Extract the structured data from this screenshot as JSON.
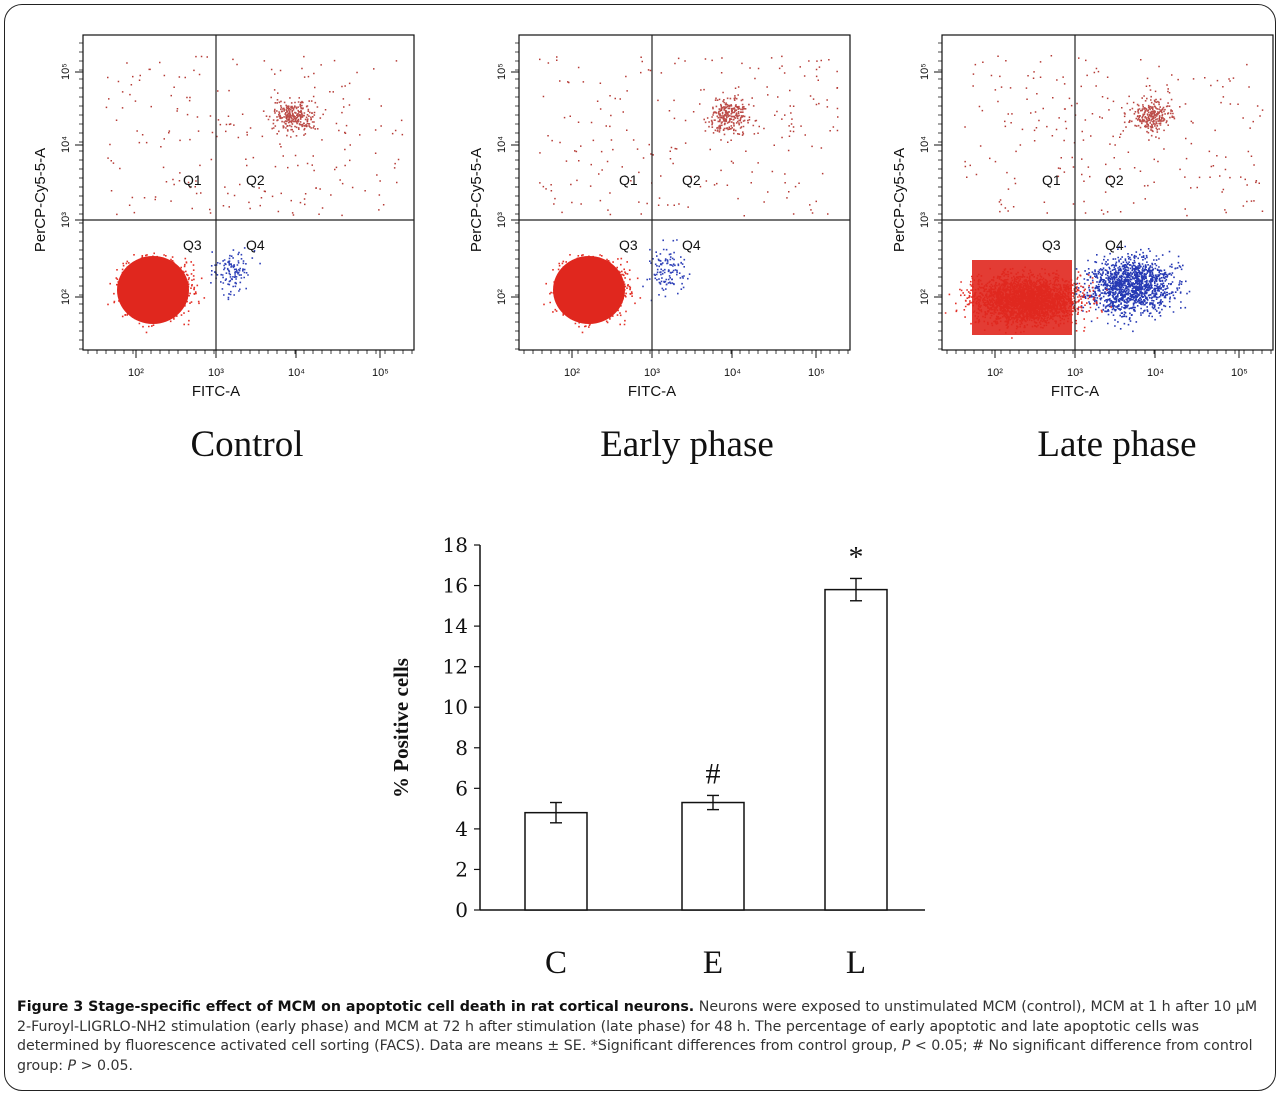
{
  "facs_panels": [
    {
      "title": "Control",
      "xlabel": "FITC-A",
      "ylabel": "PerCP-Cy5-5-A",
      "quadrants": [
        "Q1",
        "Q2",
        "Q3",
        "Q4"
      ]
    },
    {
      "title": "Early phase",
      "xlabel": "FITC-A",
      "ylabel": "PerCP-Cy5-5-A",
      "quadrants": [
        "Q1",
        "Q2",
        "Q3",
        "Q4"
      ]
    },
    {
      "title": "Late phase",
      "xlabel": "FITC-A",
      "ylabel": "PerCP-Cy5-5-A",
      "quadrants": [
        "Q1",
        "Q2",
        "Q3",
        "Q4"
      ]
    }
  ],
  "facs_ticks": {
    "x": [
      "10²",
      "10³",
      "10⁴",
      "10⁵"
    ],
    "y": [
      "10²",
      "10³",
      "10⁴",
      "10⁵"
    ]
  },
  "colors": {
    "red_dots": "#e0271e",
    "blue_dots": "#1a2eb0",
    "red_sparse": "#b53a35"
  },
  "chart_data": [
    {
      "type": "scatter",
      "title": "Control",
      "xlabel": "FITC-A",
      "ylabel": "PerCP-Cy5-5-A",
      "scale": "log",
      "xlim": [
        10,
        300000
      ],
      "ylim": [
        20,
        300000
      ],
      "quadrant_gates": {
        "x": 1000,
        "y": 1000
      }
    },
    {
      "type": "scatter",
      "title": "Early phase",
      "xlabel": "FITC-A",
      "ylabel": "PerCP-Cy5-5-A",
      "scale": "log",
      "xlim": [
        10,
        300000
      ],
      "ylim": [
        20,
        300000
      ],
      "quadrant_gates": {
        "x": 1000,
        "y": 1000
      }
    },
    {
      "type": "scatter",
      "title": "Late phase",
      "xlabel": "FITC-A",
      "ylabel": "PerCP-Cy5-5-A",
      "scale": "log",
      "xlim": [
        10,
        300000
      ],
      "ylim": [
        20,
        300000
      ],
      "quadrant_gates": {
        "x": 1000,
        "y": 1000
      }
    },
    {
      "type": "bar",
      "categories": [
        "C",
        "E",
        "L"
      ],
      "values": [
        4.8,
        5.3,
        15.8
      ],
      "errors": [
        0.5,
        0.35,
        0.55
      ],
      "annotations": [
        "",
        "#",
        "*"
      ],
      "xlabel": "",
      "ylabel": "% Positive cells",
      "ylim": [
        0,
        18
      ],
      "yticks": [
        0,
        2,
        4,
        6,
        8,
        10,
        12,
        14,
        16,
        18
      ],
      "bar_fill": "#ffffff",
      "bar_stroke": "#111111"
    }
  ],
  "caption": {
    "title": "Figure 3 Stage-specific effect of MCM on apoptotic cell death in rat cortical neurons.",
    "body1": " Neurons were exposed to unstimulated MCM (control), MCM at 1 h after 10 μM 2-Furoyl-LIGRLO-NH2 stimulation (early phase) and MCM at 72 h after stimulation (late phase) for 48 h. The percentage of early apoptotic and late apoptotic cells was determined by fluorescence activated cell sorting (FACS). Data are means ± SE. *Significant differences from control group, ",
    "p1": "P",
    "body2": " < 0.05; # No significant difference from control group: ",
    "p2": "P",
    "body3": " > 0.05."
  }
}
